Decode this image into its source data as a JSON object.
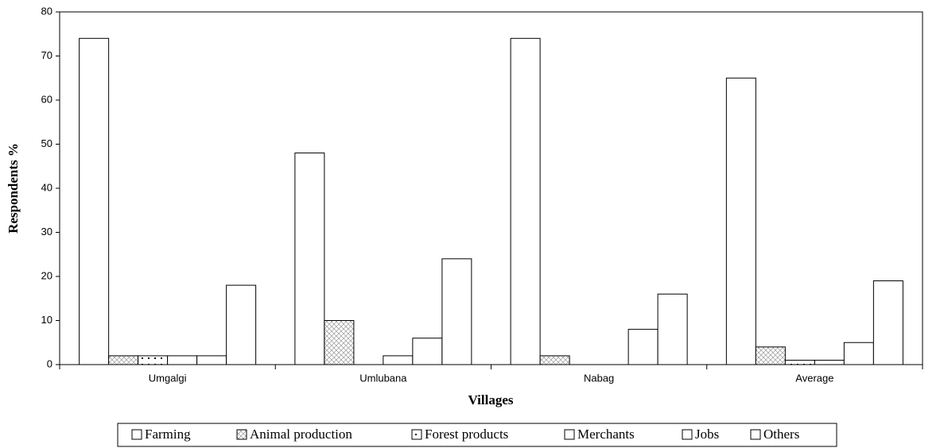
{
  "chart_data": {
    "type": "bar",
    "x_label": "Villages",
    "y_label": "Respondents %",
    "categories": [
      "Umgalgi",
      "Umlubana",
      "Nabag",
      "Average"
    ],
    "series": [
      {
        "name": "Farming",
        "color": "#000000",
        "values": [
          74,
          48,
          74,
          65
        ]
      },
      {
        "name": "Animal production",
        "color": "#000000",
        "values": [
          2,
          10,
          2,
          4
        ]
      },
      {
        "name": "Forest products",
        "color": "#000000",
        "values": [
          2,
          0,
          0,
          1
        ]
      },
      {
        "name": "Merchants",
        "color": "#000000",
        "values": [
          2,
          2,
          0,
          1
        ]
      },
      {
        "name": "Jobs",
        "color": "#000000",
        "values": [
          2,
          6,
          8,
          5
        ]
      },
      {
        "name": "Others",
        "color": "#000000",
        "values": [
          18,
          24,
          16,
          19
        ]
      }
    ],
    "ylim": [
      0,
      80
    ],
    "yticks": [
      0,
      10,
      20,
      30,
      40,
      50,
      60,
      70,
      80
    ],
    "legend": "bottom"
  }
}
